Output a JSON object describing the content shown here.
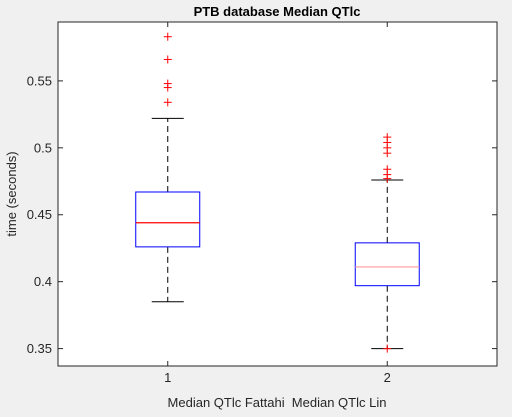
{
  "figure": {
    "background": "#f0f0f0",
    "axes_background": "#ffffff"
  },
  "chart_data": {
    "type": "box",
    "title": "PTB database Median QTlc",
    "xlabel": "Median QTlc Fattahi  Median QTlc Lin",
    "ylabel": "time (seconds)",
    "categories": [
      "1",
      "2"
    ],
    "x_range": [
      0.5,
      2.5
    ],
    "ylim": [
      0.337,
      0.594
    ],
    "yticks": [
      0.35,
      0.4,
      0.45,
      0.5,
      0.55
    ],
    "ytick_labels": [
      "0.35",
      "0.4",
      "0.45",
      "0.5",
      "0.55"
    ],
    "grid": false,
    "box_color": "#0000ff",
    "median_colors": [
      "#ff0000",
      "#ff9999"
    ],
    "whisker_color": "#000000",
    "outlier_color": "#ff0000",
    "series": [
      {
        "x": 1,
        "whisker_low": 0.385,
        "q1": 0.426,
        "median": 0.444,
        "q3": 0.467,
        "whisker_high": 0.522,
        "outliers": [
          0.534,
          0.545,
          0.548,
          0.566,
          0.583
        ]
      },
      {
        "x": 2,
        "whisker_low": 0.35,
        "q1": 0.397,
        "median": 0.411,
        "q3": 0.429,
        "whisker_high": 0.476,
        "outliers": [
          0.35,
          0.477,
          0.48,
          0.484,
          0.496,
          0.5,
          0.504,
          0.508
        ]
      }
    ]
  }
}
